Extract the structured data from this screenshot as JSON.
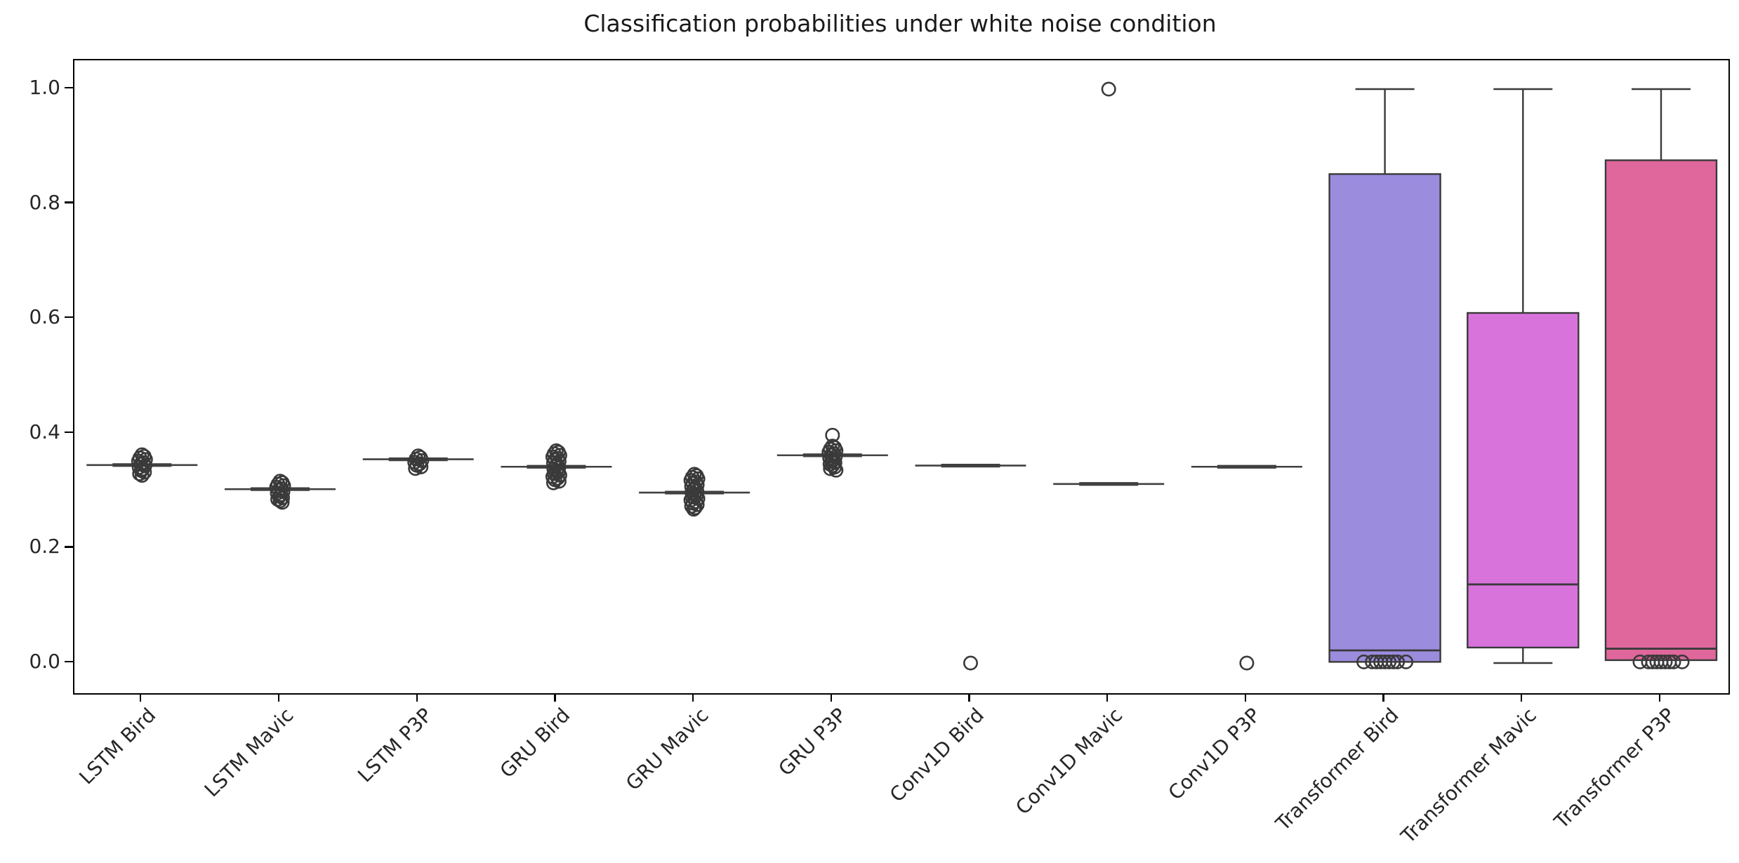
{
  "colors": {
    "background": "#ffffff",
    "spine": "#000000",
    "box_edge": "#3a3a3a",
    "collapsed_line": "#404040",
    "flier_edge": "#3a3a3a",
    "text": "#262626",
    "transformer_bird_fill": "#9c8cde",
    "transformer_mavic_fill": "#d973dc",
    "transformer_p3p_fill": "#df679c"
  },
  "chart_data": {
    "type": "boxplot",
    "title": "Classification probabilities under white noise condition",
    "xlabel": "",
    "ylabel": "",
    "ylim": [
      -0.053,
      1.05
    ],
    "grid": false,
    "legend": "none",
    "yticks": [
      "0.0",
      "0.2",
      "0.4",
      "0.6",
      "0.8",
      "1.0"
    ],
    "ytick_values": [
      0.0,
      0.2,
      0.4,
      0.6,
      0.8,
      1.0
    ],
    "categories": [
      "LSTM Bird",
      "LSTM Mavic",
      "LSTM P3P",
      "GRU Bird",
      "GRU Mavic",
      "GRU P3P",
      "Conv1D Bird",
      "Conv1D Mavic",
      "Conv1D P3P",
      "Transformer Bird",
      "Transformer Mavic",
      "Transformer P3P"
    ],
    "series": [
      {
        "label": "LSTM Bird",
        "kind": "collapsed",
        "median": 0.345,
        "q1": 0.345,
        "q3": 0.345,
        "whislo": 0.345,
        "whishi": 0.345,
        "flier_cluster": [
          0.327,
          0.363
        ],
        "fliers": []
      },
      {
        "label": "LSTM Mavic",
        "kind": "collapsed",
        "median": 0.303,
        "q1": 0.303,
        "q3": 0.303,
        "whislo": 0.303,
        "whishi": 0.303,
        "flier_cluster": [
          0.28,
          0.317
        ],
        "fliers": []
      },
      {
        "label": "LSTM P3P",
        "kind": "collapsed",
        "median": 0.355,
        "q1": 0.355,
        "q3": 0.355,
        "whislo": 0.355,
        "whishi": 0.355,
        "flier_cluster": [
          0.339,
          0.361
        ],
        "fliers": []
      },
      {
        "label": "GRU Bird",
        "kind": "collapsed",
        "median": 0.342,
        "q1": 0.342,
        "q3": 0.342,
        "whislo": 0.342,
        "whishi": 0.342,
        "flier_cluster": [
          0.314,
          0.37
        ],
        "fliers": []
      },
      {
        "label": "GRU Mavic",
        "kind": "collapsed",
        "median": 0.297,
        "q1": 0.297,
        "q3": 0.297,
        "whislo": 0.297,
        "whishi": 0.297,
        "flier_cluster": [
          0.268,
          0.329
        ],
        "fliers": []
      },
      {
        "label": "GRU P3P",
        "kind": "collapsed",
        "median": 0.362,
        "q1": 0.362,
        "q3": 0.362,
        "whislo": 0.362,
        "whishi": 0.362,
        "flier_cluster": [
          0.336,
          0.378
        ],
        "fliers": [
          0.397
        ]
      },
      {
        "label": "Conv1D Bird",
        "kind": "collapsed",
        "median": 0.344,
        "q1": 0.344,
        "q3": 0.344,
        "whislo": 0.344,
        "whishi": 0.344,
        "flier_cluster": null,
        "fliers": [
          0.0
        ]
      },
      {
        "label": "Conv1D Mavic",
        "kind": "collapsed",
        "median": 0.312,
        "q1": 0.312,
        "q3": 0.312,
        "whislo": 0.312,
        "whishi": 0.312,
        "flier_cluster": null,
        "fliers": [
          1.0
        ]
      },
      {
        "label": "Conv1D P3P",
        "kind": "collapsed",
        "median": 0.342,
        "q1": 0.342,
        "q3": 0.342,
        "whislo": 0.342,
        "whishi": 0.342,
        "flier_cluster": null,
        "fliers": [
          0.0
        ]
      },
      {
        "label": "Transformer Bird",
        "kind": "box",
        "median": 0.022,
        "q1": 0.002,
        "q3": 0.852,
        "whislo": 0.002,
        "whishi": 1.0,
        "fill": "#9c8cde",
        "flier_blob_at": 0.002
      },
      {
        "label": "Transformer Mavic",
        "kind": "box",
        "median": 0.137,
        "q1": 0.027,
        "q3": 0.61,
        "whislo": 0.0,
        "whishi": 1.0,
        "fill": "#d973dc",
        "flier_blob_at": null
      },
      {
        "label": "Transformer P3P",
        "kind": "box",
        "median": 0.025,
        "q1": 0.005,
        "q3": 0.876,
        "whislo": 0.005,
        "whishi": 1.0,
        "fill": "#df679c",
        "flier_blob_at": 0.002
      }
    ]
  }
}
